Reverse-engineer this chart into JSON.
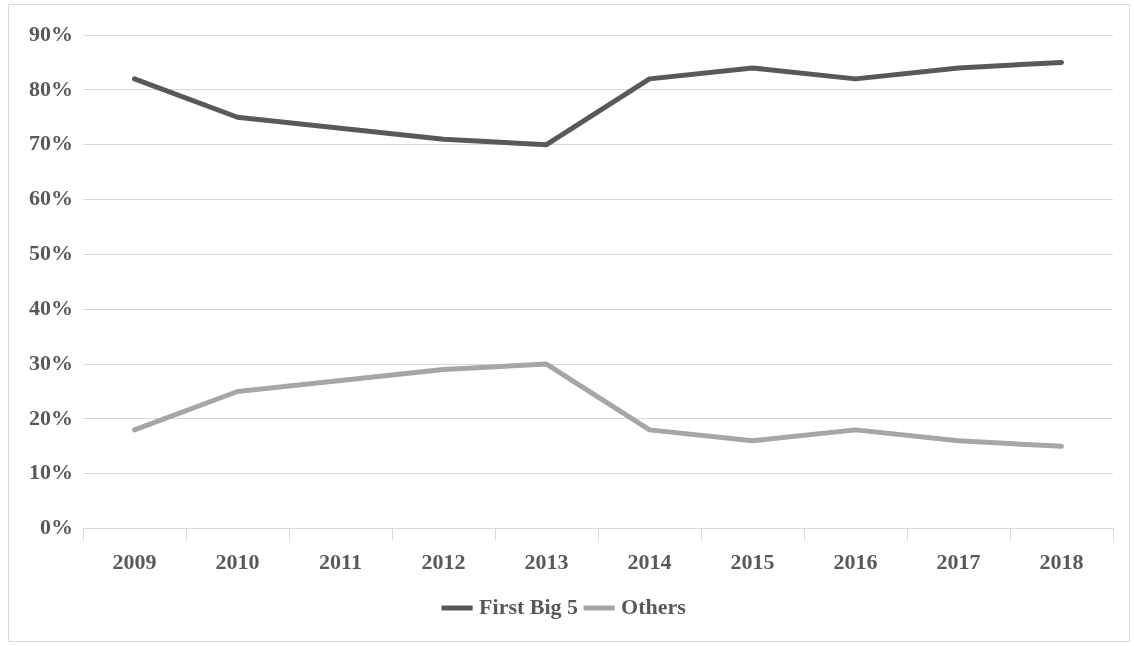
{
  "chart_data": {
    "type": "line",
    "categories": [
      "2009",
      "2010",
      "2011",
      "2012",
      "2013",
      "2014",
      "2015",
      "2016",
      "2017",
      "2018"
    ],
    "series": [
      {
        "name": "First Big 5",
        "color": "#595959",
        "values": [
          82,
          75,
          73,
          71,
          70,
          82,
          84,
          82,
          84,
          85
        ]
      },
      {
        "name": "Others",
        "color": "#a6a6a6",
        "values": [
          18,
          25,
          27,
          29,
          30,
          18,
          16,
          18,
          16,
          15
        ]
      }
    ],
    "ylim": [
      0,
      90
    ],
    "yticks": [
      {
        "value": 0,
        "label": "0%"
      },
      {
        "value": 10,
        "label": "10%"
      },
      {
        "value": 20,
        "label": "20%"
      },
      {
        "value": 30,
        "label": "30%"
      },
      {
        "value": 40,
        "label": "40%"
      },
      {
        "value": 50,
        "label": "50%"
      },
      {
        "value": 60,
        "label": "60%"
      },
      {
        "value": 70,
        "label": "70%"
      },
      {
        "value": 80,
        "label": "80%"
      },
      {
        "value": 90,
        "label": "90%"
      }
    ],
    "grid": "y",
    "legend": "bottom",
    "marker": "none",
    "line_style": "solid"
  }
}
